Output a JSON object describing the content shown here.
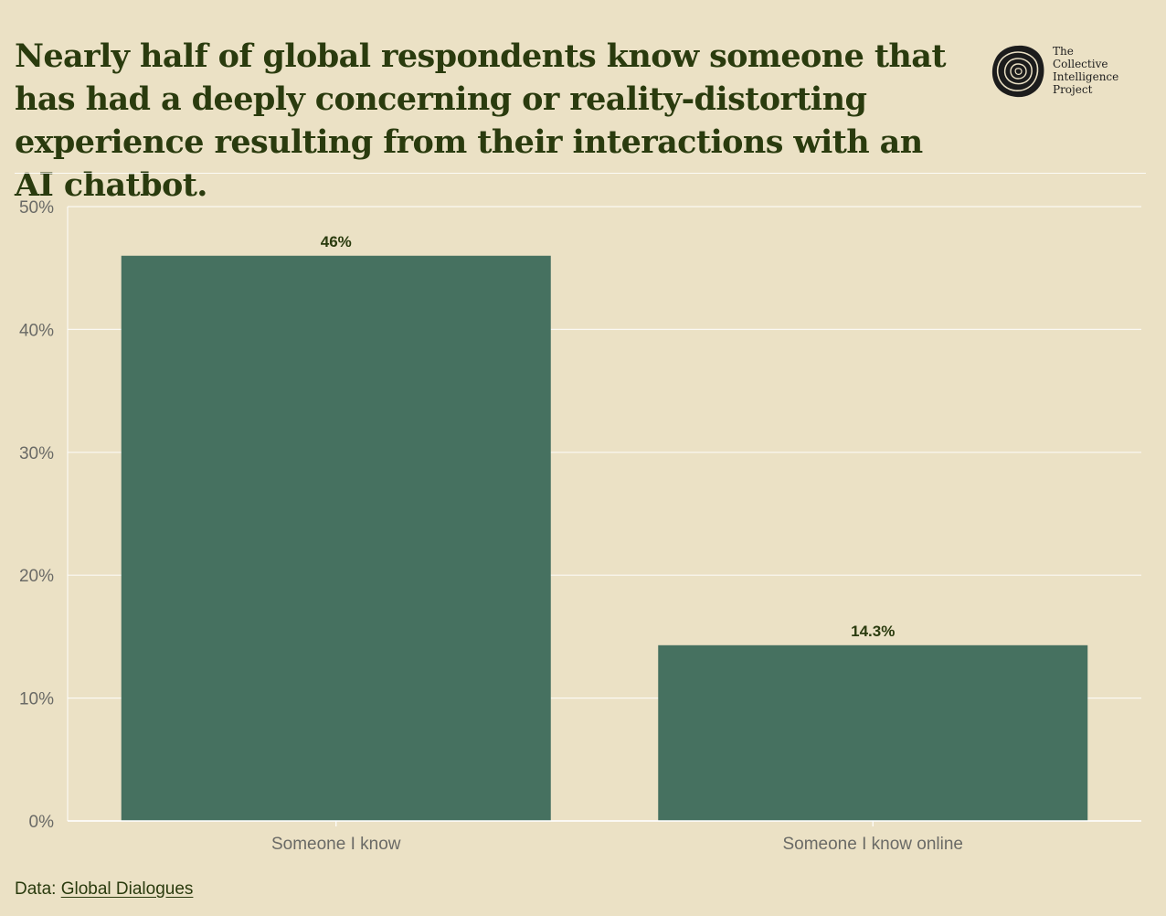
{
  "header": {
    "title": "Nearly half of global respondents know someone that has had a deeply concerning or reality-distorting experience resulting from their interactions with an AI chatbot."
  },
  "logo": {
    "line1": "The",
    "line2": "Collective",
    "line3": "Intelligence",
    "line4": "Project",
    "icon": "tree-rings-icon"
  },
  "footer": {
    "prefix": "Data:",
    "link_label": "Global Dialogues"
  },
  "colors": {
    "background": "#ebe1c5",
    "bar": "#467160",
    "title": "#2a3b0e",
    "grid": "#ffffff",
    "tick_text": "#6a6a66",
    "label_text": "#2a3b0e"
  },
  "chart_data": {
    "type": "bar",
    "title": "Nearly half of global respondents know someone that has had a deeply concerning or reality-distorting experience resulting from their interactions with an AI chatbot.",
    "xlabel": "",
    "ylabel": "",
    "categories": [
      "Someone I know",
      "Someone I know online"
    ],
    "values": [
      46,
      14.3
    ],
    "data_labels": [
      "46%",
      "14.3%"
    ],
    "ylim": [
      0,
      50
    ],
    "yticks": [
      0,
      10,
      20,
      30,
      40,
      50
    ],
    "ytick_labels": [
      "0%",
      "10%",
      "20%",
      "30%",
      "40%",
      "50%"
    ],
    "grid": true,
    "legend": "none"
  }
}
